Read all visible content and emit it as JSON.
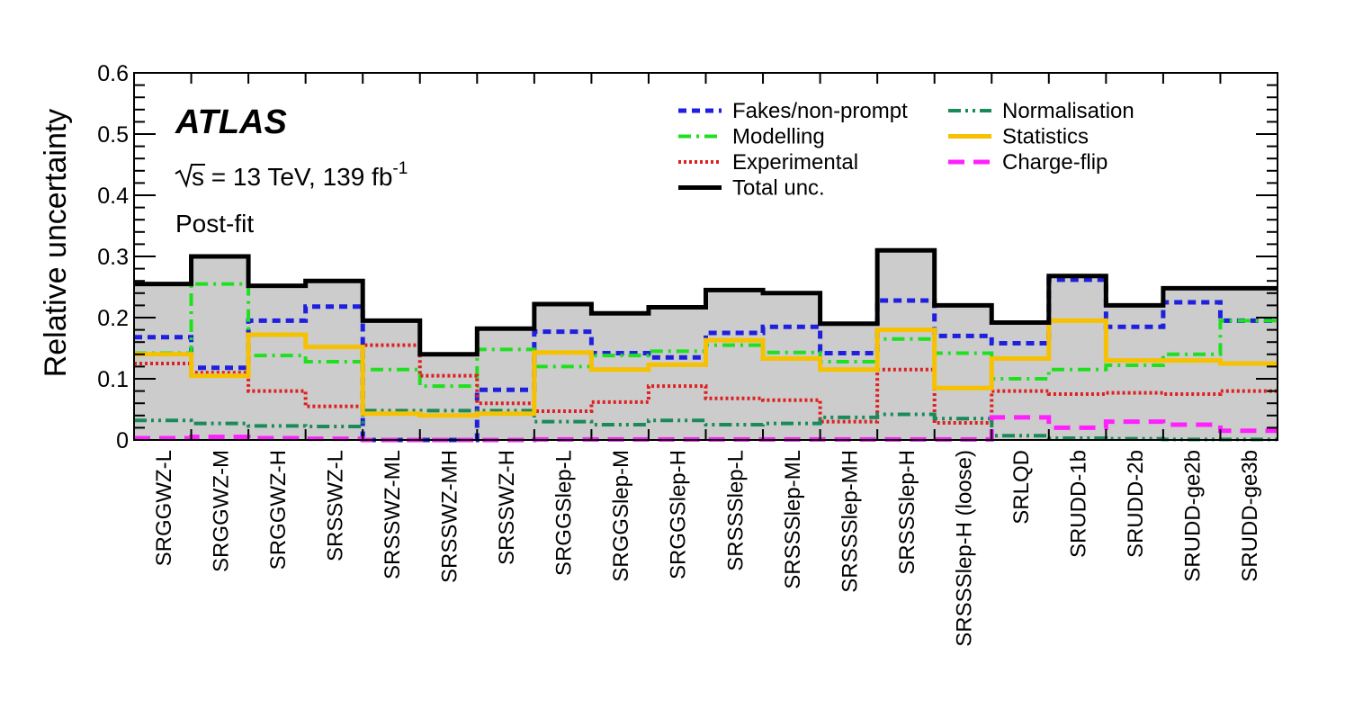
{
  "chart_data": {
    "type": "step",
    "ylabel": "Relative uncertainty",
    "ylim": [
      0,
      0.6
    ],
    "yticks": [
      "0",
      "0.1",
      "0.2",
      "0.3",
      "0.4",
      "0.5",
      "0.6"
    ],
    "categories": [
      "SRGGWZ-L",
      "SRGGWZ-M",
      "SRGGWZ-H",
      "SRSSWZ-L",
      "SRSSWZ-ML",
      "SRSSWZ-MH",
      "SRSSWZ-H",
      "SRGGSlep-L",
      "SRGGSlep-M",
      "SRGGSlep-H",
      "SRSSSlep-L",
      "SRSSSlep-ML",
      "SRSSSlep-MH",
      "SRSSSlep-H",
      "SRSSSlep-H (loose)",
      "SRLQD",
      "SRUDD-1b",
      "SRUDD-2b",
      "SRUDD-ge2b",
      "SRUDD-ge3b"
    ],
    "total": {
      "name": "Total unc.",
      "color": "#000000",
      "values": [
        0.255,
        0.3,
        0.252,
        0.26,
        0.195,
        0.14,
        0.182,
        0.222,
        0.207,
        0.217,
        0.245,
        0.24,
        0.19,
        0.31,
        0.22,
        0.192,
        0.268,
        0.22,
        0.248,
        0.248
      ]
    },
    "series": [
      {
        "name": "Fakes/non-prompt",
        "color": "#1f1fe0",
        "dash": "9,6",
        "width": 5,
        "values": [
          0.168,
          0.118,
          0.195,
          0.218,
          0,
          0,
          0.082,
          0.177,
          0.142,
          0.135,
          0.175,
          0.185,
          0.142,
          0.228,
          0.17,
          0.158,
          0.262,
          0.185,
          0.225,
          0.195
        ]
      },
      {
        "name": "Modelling",
        "color": "#1fe01f",
        "dash": "14,6,3,6",
        "width": 4,
        "values": [
          0.142,
          0.255,
          0.138,
          0.128,
          0.115,
          0.088,
          0.148,
          0.12,
          0.138,
          0.145,
          0.155,
          0.143,
          0.128,
          0.165,
          0.142,
          0.1,
          0.115,
          0.122,
          0.14,
          0.195
        ]
      },
      {
        "name": "Experimental",
        "color": "#e01f1f",
        "dash": "3,3",
        "width": 4,
        "values": [
          0.125,
          0.11,
          0.08,
          0.055,
          0.155,
          0.105,
          0.06,
          0.047,
          0.062,
          0.088,
          0.068,
          0.065,
          0.03,
          0.115,
          0.028,
          0.08,
          0.075,
          0.077,
          0.075,
          0.08
        ]
      },
      {
        "name": "Normalisation",
        "color": "#1a8a5a",
        "dash": "14,5,3,5,3,5",
        "width": 4,
        "values": [
          0.032,
          0.027,
          0.023,
          0.022,
          0.048,
          0.048,
          0.048,
          0.03,
          0.025,
          0.032,
          0.025,
          0.027,
          0.037,
          0.042,
          0.035,
          0.007,
          0.003,
          0.002,
          0.001,
          0.001
        ]
      },
      {
        "name": "Statistics",
        "color": "#f5c100",
        "dash": "",
        "width": 5,
        "values": [
          0.14,
          0.105,
          0.172,
          0.152,
          0.043,
          0.04,
          0.043,
          0.143,
          0.115,
          0.123,
          0.163,
          0.133,
          0.115,
          0.18,
          0.085,
          0.133,
          0.195,
          0.13,
          0.13,
          0.125
        ]
      },
      {
        "name": "Charge-flip",
        "color": "#ff1fff",
        "dash": "18,10",
        "width": 5,
        "values": [
          0.003,
          0.005,
          0.003,
          0.002,
          0,
          0,
          0,
          0.001,
          0.001,
          0.001,
          0.001,
          0.001,
          0.001,
          0.001,
          0.001,
          0.037,
          0.02,
          0.03,
          0.025,
          0.015
        ]
      }
    ],
    "legend": {
      "placement": "top-right",
      "left_column": [
        "Fakes/non-prompt",
        "Modelling",
        "Experimental",
        "Total unc."
      ],
      "right_column": [
        "Normalisation",
        "Statistics",
        "Charge-flip"
      ]
    }
  },
  "annotations": {
    "experiment": "ATLAS",
    "energy_prefix": "s",
    "energy_text": " = 13 TeV, 139 fb",
    "lumi_exponent": "-1",
    "fit_state": "Post-fit"
  }
}
